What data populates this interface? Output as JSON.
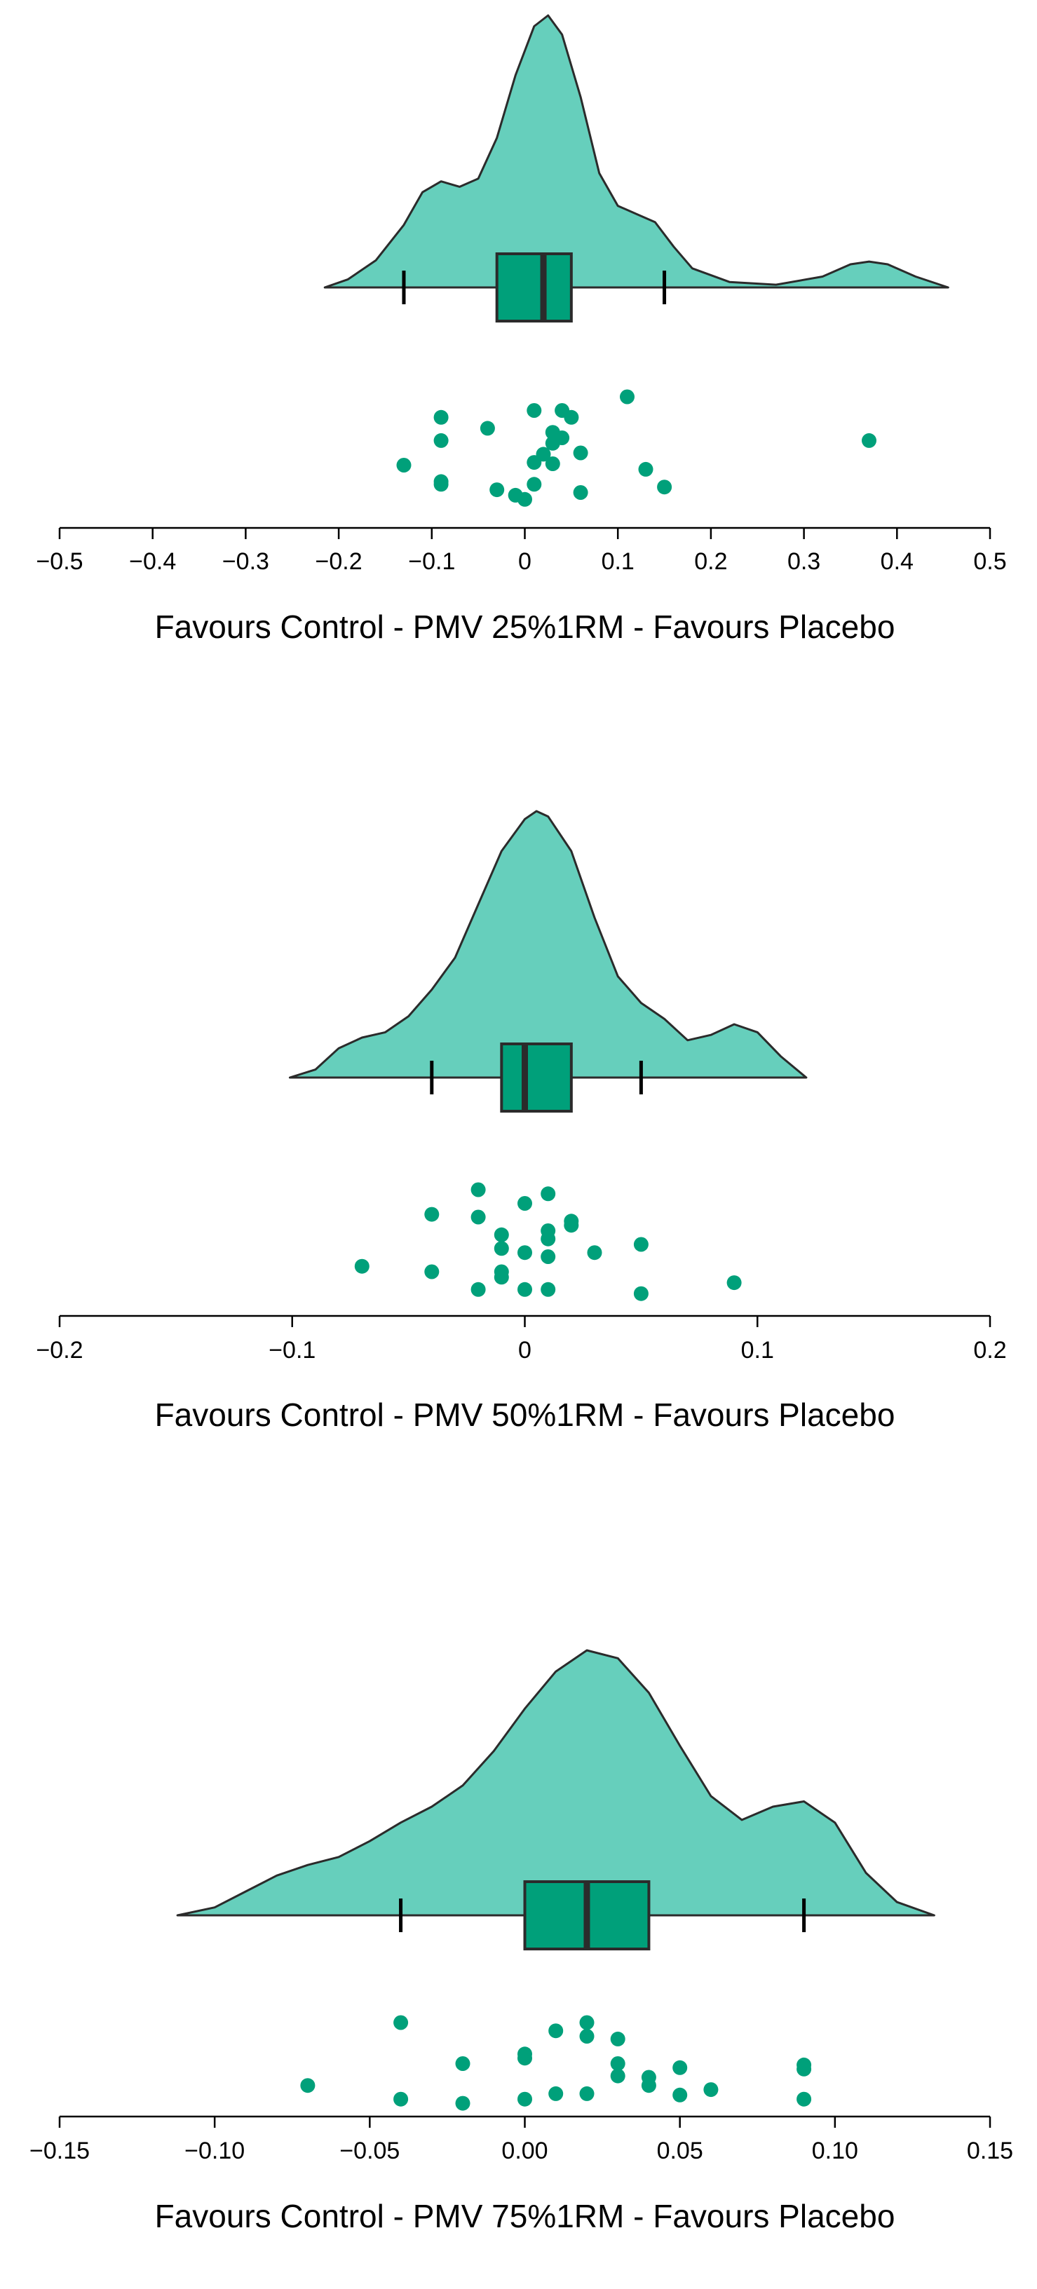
{
  "colors": {
    "density_fill": "#66cfbc",
    "box_fill": "#00a07a",
    "point": "#00a07a",
    "stroke": "#2b2b2b"
  },
  "chart_data": [
    {
      "type": "raincloud",
      "xlabel": "Favours Control - PMV 25%1RM - Favours Placebo",
      "xlim": [
        -0.5,
        0.5
      ],
      "ticks": [
        -0.5,
        -0.4,
        -0.3,
        -0.2,
        -0.1,
        0,
        0.1,
        0.2,
        0.3,
        0.4,
        0.5
      ],
      "tick_labels": [
        "−0.5",
        "−0.4",
        "−0.3",
        "−0.2",
        "−0.1",
        "0",
        "0.1",
        "0.2",
        "0.3",
        "0.4",
        "0.5"
      ],
      "box": {
        "whisker_low": -0.13,
        "q1": -0.03,
        "median": 0.02,
        "q3": 0.05,
        "whisker_high": 0.15
      },
      "density": [
        [
          -0.215,
          0
        ],
        [
          -0.19,
          0.03
        ],
        [
          -0.16,
          0.1
        ],
        [
          -0.13,
          0.23
        ],
        [
          -0.11,
          0.35
        ],
        [
          -0.09,
          0.39
        ],
        [
          -0.07,
          0.37
        ],
        [
          -0.05,
          0.4
        ],
        [
          -0.03,
          0.55
        ],
        [
          -0.01,
          0.78
        ],
        [
          0.01,
          0.96
        ],
        [
          0.025,
          1.0
        ],
        [
          0.04,
          0.93
        ],
        [
          0.06,
          0.7
        ],
        [
          0.08,
          0.42
        ],
        [
          0.1,
          0.3
        ],
        [
          0.12,
          0.27
        ],
        [
          0.14,
          0.24
        ],
        [
          0.16,
          0.15
        ],
        [
          0.18,
          0.07
        ],
        [
          0.22,
          0.02
        ],
        [
          0.27,
          0.01
        ],
        [
          0.32,
          0.04
        ],
        [
          0.35,
          0.085
        ],
        [
          0.37,
          0.095
        ],
        [
          0.39,
          0.085
        ],
        [
          0.42,
          0.04
        ],
        [
          0.455,
          0
        ]
      ],
      "points": [
        [
          0.11,
          0
        ],
        [
          0.01,
          1
        ],
        [
          0.04,
          1
        ],
        [
          0.05,
          1.5
        ],
        [
          -0.09,
          1.5
        ],
        [
          -0.04,
          2.3
        ],
        [
          0.03,
          2.6
        ],
        [
          0.04,
          3
        ],
        [
          -0.09,
          3.2
        ],
        [
          0.03,
          3.4
        ],
        [
          0.37,
          3.2
        ],
        [
          0.02,
          4.2
        ],
        [
          0.06,
          4.1
        ],
        [
          0.01,
          4.8
        ],
        [
          0.03,
          4.9
        ],
        [
          -0.13,
          5
        ],
        [
          0.13,
          5.3
        ],
        [
          -0.09,
          6.2
        ],
        [
          -0.09,
          6.4
        ],
        [
          0.01,
          6.4
        ],
        [
          -0.03,
          6.8
        ],
        [
          0.15,
          6.6
        ],
        [
          0.06,
          7
        ],
        [
          -0.01,
          7.2
        ],
        [
          0,
          7.5
        ]
      ]
    },
    {
      "type": "raincloud",
      "xlabel": "Favours Control - PMV 50%1RM - Favours Placebo",
      "xlim": [
        -0.2,
        0.2
      ],
      "ticks": [
        -0.2,
        -0.1,
        0,
        0.1,
        0.2
      ],
      "tick_labels": [
        "−0.2",
        "−0.1",
        "0",
        "0.1",
        "0.2"
      ],
      "box": {
        "whisker_low": -0.04,
        "q1": -0.01,
        "median": 0,
        "q3": 0.02,
        "whisker_high": 0.05
      },
      "density": [
        [
          -0.101,
          0
        ],
        [
          -0.09,
          0.03
        ],
        [
          -0.08,
          0.11
        ],
        [
          -0.07,
          0.15
        ],
        [
          -0.06,
          0.17
        ],
        [
          -0.05,
          0.23
        ],
        [
          -0.04,
          0.33
        ],
        [
          -0.03,
          0.45
        ],
        [
          -0.02,
          0.65
        ],
        [
          -0.01,
          0.85
        ],
        [
          0,
          0.97
        ],
        [
          0.005,
          1.0
        ],
        [
          0.01,
          0.98
        ],
        [
          0.02,
          0.85
        ],
        [
          0.03,
          0.6
        ],
        [
          0.04,
          0.38
        ],
        [
          0.05,
          0.28
        ],
        [
          0.06,
          0.22
        ],
        [
          0.07,
          0.14
        ],
        [
          0.08,
          0.16
        ],
        [
          0.09,
          0.2
        ],
        [
          0.1,
          0.17
        ],
        [
          0.11,
          0.08
        ],
        [
          0.121,
          0
        ]
      ],
      "points": [
        [
          -0.02,
          0
        ],
        [
          0.01,
          0.3
        ],
        [
          0,
          1
        ],
        [
          -0.04,
          1.8
        ],
        [
          -0.02,
          2
        ],
        [
          0.02,
          2.3
        ],
        [
          0.02,
          2.6
        ],
        [
          0.01,
          3
        ],
        [
          -0.01,
          3.3
        ],
        [
          0.01,
          3.6
        ],
        [
          0.05,
          4
        ],
        [
          -0.01,
          4.3
        ],
        [
          0.03,
          4.6
        ],
        [
          0,
          4.6
        ],
        [
          0.01,
          4.9
        ],
        [
          -0.07,
          5.6
        ],
        [
          -0.04,
          6
        ],
        [
          -0.01,
          6
        ],
        [
          -0.01,
          6.4
        ],
        [
          0.09,
          6.8
        ],
        [
          -0.02,
          7.3
        ],
        [
          0,
          7.3
        ],
        [
          0.01,
          7.3
        ],
        [
          0.05,
          7.6
        ]
      ]
    },
    {
      "type": "raincloud",
      "xlabel": "Favours Control - PMV 75%1RM - Favours Placebo",
      "xlim": [
        -0.15,
        0.15
      ],
      "ticks": [
        -0.15,
        -0.1,
        -0.05,
        0,
        0.05,
        0.1,
        0.15
      ],
      "tick_labels": [
        "−0.15",
        "−0.10",
        "−0.05",
        "0.00",
        "0.05",
        "0.10",
        "0.15"
      ],
      "box": {
        "whisker_low": -0.04,
        "q1": 0,
        "median": 0.02,
        "q3": 0.04,
        "whisker_high": 0.09
      },
      "density": [
        [
          -0.112,
          0
        ],
        [
          -0.1,
          0.03
        ],
        [
          -0.09,
          0.09
        ],
        [
          -0.08,
          0.15
        ],
        [
          -0.07,
          0.19
        ],
        [
          -0.06,
          0.22
        ],
        [
          -0.05,
          0.28
        ],
        [
          -0.04,
          0.35
        ],
        [
          -0.03,
          0.41
        ],
        [
          -0.02,
          0.49
        ],
        [
          -0.01,
          0.62
        ],
        [
          0,
          0.78
        ],
        [
          0.01,
          0.92
        ],
        [
          0.02,
          1.0
        ],
        [
          0.03,
          0.97
        ],
        [
          0.04,
          0.84
        ],
        [
          0.05,
          0.64
        ],
        [
          0.06,
          0.45
        ],
        [
          0.07,
          0.36
        ],
        [
          0.08,
          0.41
        ],
        [
          0.09,
          0.43
        ],
        [
          0.1,
          0.35
        ],
        [
          0.11,
          0.16
        ],
        [
          0.12,
          0.05
        ],
        [
          0.132,
          0
        ]
      ],
      "points": [
        [
          -0.04,
          0
        ],
        [
          0.02,
          0
        ],
        [
          0.01,
          0.6
        ],
        [
          0.02,
          1
        ],
        [
          0.03,
          1.2
        ],
        [
          0,
          2.3
        ],
        [
          0,
          2.6
        ],
        [
          -0.02,
          3
        ],
        [
          0.03,
          3
        ],
        [
          0.05,
          3.3
        ],
        [
          0.09,
          3.1
        ],
        [
          0.09,
          3.4
        ],
        [
          0.03,
          3.9
        ],
        [
          0.04,
          4
        ],
        [
          -0.07,
          4.6
        ],
        [
          0.04,
          4.6
        ],
        [
          0.06,
          4.9
        ],
        [
          0.01,
          5.2
        ],
        [
          0.02,
          5.2
        ],
        [
          0.05,
          5.3
        ],
        [
          -0.04,
          5.6
        ],
        [
          0,
          5.6
        ],
        [
          0.09,
          5.6
        ],
        [
          -0.02,
          5.9
        ]
      ]
    }
  ]
}
